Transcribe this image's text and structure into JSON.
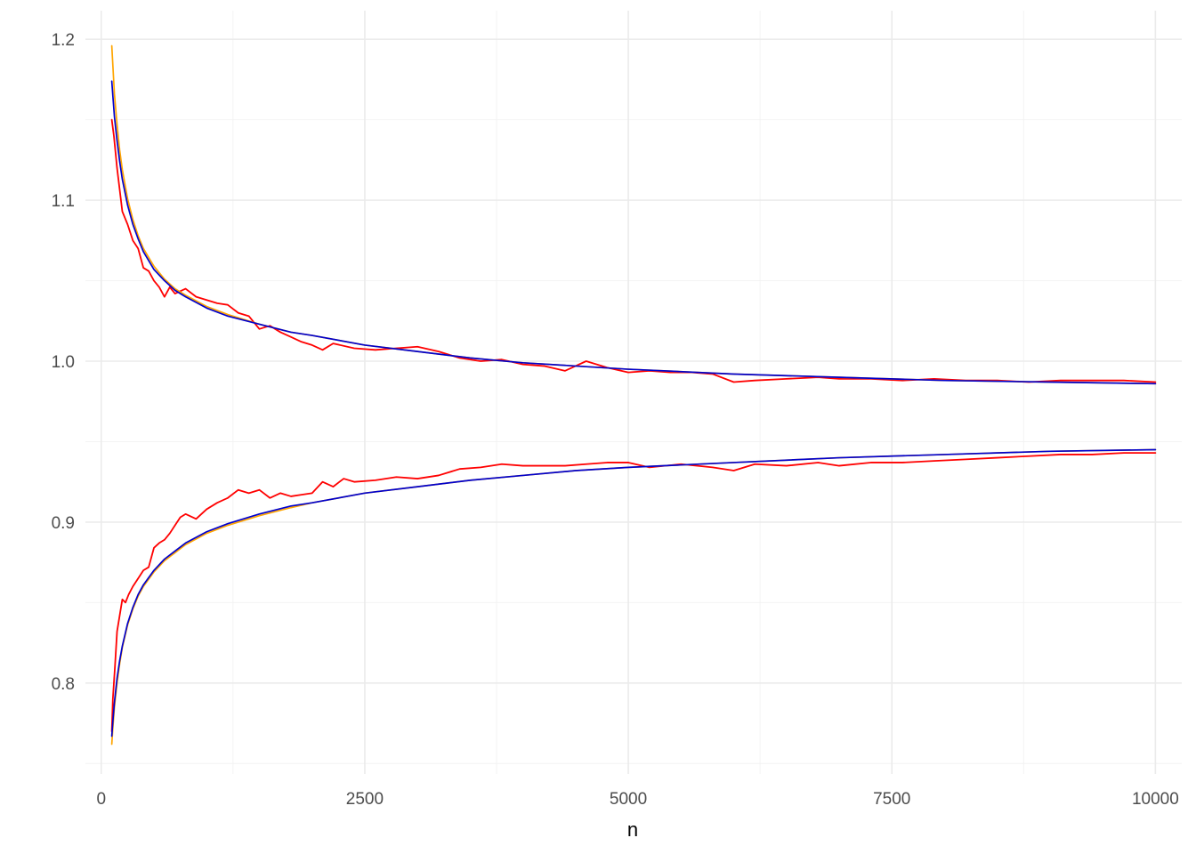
{
  "chart_data": {
    "type": "line",
    "title": "",
    "xlabel": "n",
    "ylabel": "",
    "xlim": [
      -150,
      10250
    ],
    "ylim": [
      0.7435,
      1.2178
    ],
    "x_ticks": [
      0,
      2500,
      5000,
      7500,
      10000
    ],
    "x_tick_labels": [
      "0",
      "2500",
      "5000",
      "7500",
      "10000"
    ],
    "y_ticks": [
      0.8,
      0.9,
      1.0,
      1.1,
      1.2
    ],
    "y_tick_labels": [
      "0.8",
      "0.9",
      "1.0",
      "1.1",
      "1.2"
    ],
    "grid": true,
    "legend": "none",
    "series": [
      {
        "color": "#ff0000",
        "band": "upper",
        "x": [
          100,
          120,
          150,
          200,
          250,
          300,
          350,
          400,
          450,
          500,
          550,
          600,
          650,
          700,
          800,
          900,
          1000,
          1100,
          1200,
          1300,
          1400,
          1500,
          1600,
          1700,
          1800,
          1900,
          2000,
          2100,
          2200,
          2400,
          2600,
          2800,
          3000,
          3200,
          3400,
          3600,
          3800,
          4000,
          4200,
          4400,
          4600,
          4800,
          5000,
          5200,
          5400,
          5600,
          5800,
          6000,
          6200,
          6500,
          6800,
          7000,
          7300,
          7600,
          7900,
          8200,
          8500,
          8800,
          9100,
          9400,
          9700,
          10000
        ],
        "y": [
          1.15,
          1.14,
          1.12,
          1.093,
          1.085,
          1.075,
          1.07,
          1.058,
          1.056,
          1.05,
          1.046,
          1.04,
          1.046,
          1.042,
          1.045,
          1.04,
          1.038,
          1.036,
          1.035,
          1.03,
          1.028,
          1.02,
          1.022,
          1.018,
          1.015,
          1.012,
          1.01,
          1.007,
          1.011,
          1.008,
          1.007,
          1.008,
          1.009,
          1.006,
          1.002,
          1.0,
          1.001,
          0.998,
          0.997,
          0.994,
          1.0,
          0.996,
          0.993,
          0.994,
          0.993,
          0.993,
          0.992,
          0.987,
          0.988,
          0.989,
          0.99,
          0.989,
          0.989,
          0.988,
          0.989,
          0.988,
          0.988,
          0.987,
          0.988,
          0.988,
          0.988,
          0.987
        ]
      },
      {
        "color": "#ff0000",
        "band": "lower",
        "x": [
          100,
          110,
          130,
          150,
          170,
          200,
          230,
          260,
          300,
          350,
          400,
          450,
          500,
          550,
          600,
          650,
          700,
          750,
          800,
          900,
          1000,
          1100,
          1200,
          1300,
          1400,
          1500,
          1600,
          1700,
          1800,
          1900,
          2000,
          2100,
          2200,
          2300,
          2400,
          2600,
          2800,
          3000,
          3200,
          3400,
          3600,
          3800,
          4000,
          4200,
          4400,
          4600,
          4800,
          5000,
          5200,
          5500,
          5800,
          6000,
          6200,
          6500,
          6800,
          7000,
          7300,
          7600,
          7900,
          8200,
          8500,
          8800,
          9100,
          9400,
          9700,
          10000
        ],
        "y": [
          0.77,
          0.79,
          0.81,
          0.832,
          0.84,
          0.852,
          0.85,
          0.855,
          0.86,
          0.865,
          0.87,
          0.872,
          0.884,
          0.887,
          0.889,
          0.893,
          0.898,
          0.903,
          0.905,
          0.902,
          0.908,
          0.912,
          0.915,
          0.92,
          0.918,
          0.92,
          0.915,
          0.918,
          0.916,
          0.917,
          0.918,
          0.925,
          0.922,
          0.927,
          0.925,
          0.926,
          0.928,
          0.927,
          0.929,
          0.933,
          0.934,
          0.936,
          0.935,
          0.935,
          0.935,
          0.936,
          0.937,
          0.937,
          0.934,
          0.936,
          0.934,
          0.932,
          0.936,
          0.935,
          0.937,
          0.935,
          0.937,
          0.937,
          0.938,
          0.939,
          0.94,
          0.941,
          0.942,
          0.942,
          0.943,
          0.943
        ]
      },
      {
        "color": "#ffa500",
        "band": "upper",
        "x": [
          100,
          110,
          125,
          150,
          175,
          200,
          250,
          300,
          350,
          400,
          500,
          600,
          700,
          800,
          1000,
          1200,
          1500,
          1800,
          2000,
          2500,
          3000,
          3500,
          4000,
          4500,
          5000,
          6000,
          7000,
          8000,
          9000,
          10000
        ],
        "y": [
          1.196,
          1.184,
          1.166,
          1.147,
          1.131,
          1.119,
          1.101,
          1.088,
          1.078,
          1.07,
          1.059,
          1.051,
          1.045,
          1.041,
          1.034,
          1.029,
          1.023,
          1.018,
          1.016,
          1.01,
          1.006,
          1.002,
          0.999,
          0.997,
          0.995,
          0.992,
          0.99,
          0.988,
          0.987,
          0.986
        ]
      },
      {
        "color": "#ffa500",
        "band": "lower",
        "x": [
          100,
          110,
          125,
          150,
          175,
          200,
          250,
          300,
          350,
          400,
          500,
          600,
          700,
          800,
          1000,
          1200,
          1500,
          1800,
          2000,
          2500,
          3000,
          3500,
          4000,
          4500,
          5000,
          6000,
          7000,
          8000,
          9000,
          10000
        ],
        "y": [
          0.762,
          0.772,
          0.785,
          0.8,
          0.812,
          0.822,
          0.836,
          0.846,
          0.854,
          0.86,
          0.869,
          0.876,
          0.881,
          0.886,
          0.893,
          0.898,
          0.904,
          0.909,
          0.912,
          0.918,
          0.922,
          0.926,
          0.929,
          0.932,
          0.934,
          0.937,
          0.94,
          0.942,
          0.944,
          0.945
        ]
      },
      {
        "color": "#0000cd",
        "band": "upper",
        "x": [
          100,
          110,
          125,
          150,
          175,
          200,
          250,
          300,
          350,
          400,
          500,
          600,
          700,
          800,
          1000,
          1200,
          1500,
          1800,
          2000,
          2500,
          3000,
          3500,
          4000,
          4500,
          5000,
          6000,
          7000,
          8000,
          9000,
          10000
        ],
        "y": [
          1.174,
          1.165,
          1.152,
          1.137,
          1.124,
          1.113,
          1.097,
          1.085,
          1.076,
          1.068,
          1.057,
          1.05,
          1.044,
          1.04,
          1.033,
          1.028,
          1.023,
          1.018,
          1.016,
          1.01,
          1.006,
          1.002,
          0.999,
          0.997,
          0.995,
          0.992,
          0.99,
          0.988,
          0.987,
          0.986
        ]
      },
      {
        "color": "#0000cd",
        "band": "lower",
        "x": [
          100,
          110,
          125,
          150,
          175,
          200,
          250,
          300,
          350,
          400,
          500,
          600,
          700,
          800,
          1000,
          1200,
          1500,
          1800,
          2000,
          2500,
          3000,
          3500,
          4000,
          4500,
          5000,
          6000,
          7000,
          8000,
          9000,
          10000
        ],
        "y": [
          0.767,
          0.776,
          0.788,
          0.803,
          0.814,
          0.823,
          0.837,
          0.847,
          0.855,
          0.861,
          0.87,
          0.877,
          0.882,
          0.887,
          0.894,
          0.899,
          0.905,
          0.91,
          0.912,
          0.918,
          0.922,
          0.926,
          0.929,
          0.932,
          0.934,
          0.937,
          0.94,
          0.942,
          0.944,
          0.945
        ]
      }
    ]
  }
}
